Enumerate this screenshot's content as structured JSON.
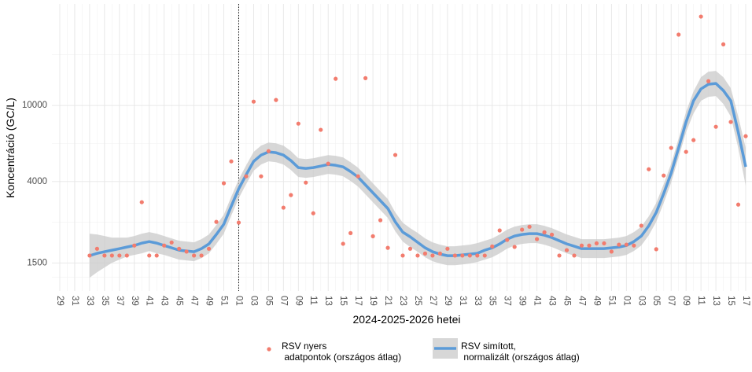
{
  "chart_data": {
    "type": "line",
    "x_label": "2024-2025-2026 hetei",
    "y_label": "Koncentráció (GC/L)",
    "log_y": true,
    "ylim": [
      1070,
      34000
    ],
    "yticks": [
      1500,
      4000,
      10000
    ],
    "grid": true,
    "vline_index": 24,
    "legend": "bottom",
    "categories": [
      "29",
      null,
      "31",
      null,
      "33",
      null,
      "35",
      null,
      "37",
      null,
      "39",
      null,
      "41",
      null,
      "43",
      null,
      "45",
      null,
      "47",
      null,
      "49",
      null,
      "51",
      null,
      "01",
      null,
      "03",
      null,
      "05",
      null,
      "07",
      null,
      "09",
      null,
      "11",
      null,
      "13",
      null,
      "15",
      null,
      "17",
      null,
      "19",
      null,
      "21",
      null,
      "23",
      null,
      "25",
      null,
      "27",
      null,
      "29",
      null,
      "31",
      null,
      "33",
      null,
      "35",
      null,
      "37",
      null,
      "39",
      null,
      "41",
      null,
      "43",
      null,
      "45",
      null,
      "47",
      null,
      "49",
      null,
      "51",
      null,
      "01",
      null,
      "03",
      null,
      "05",
      null,
      "07",
      null,
      "09",
      null,
      "11",
      null,
      "13",
      null,
      "15",
      null,
      "17"
    ],
    "series": [
      {
        "name": "RSV nyers\n adatpontok (országos átlag)",
        "type": "scatter",
        "color": "#f27c6e",
        "values": [
          null,
          null,
          null,
          null,
          1640,
          1780,
          1640,
          1640,
          1640,
          1640,
          1850,
          3120,
          1640,
          1640,
          1850,
          1920,
          1780,
          1720,
          1640,
          1640,
          1780,
          2460,
          3920,
          5100,
          2440,
          4260,
          10480,
          4260,
          5770,
          10690,
          2920,
          3400,
          8040,
          3950,
          2730,
          7460,
          4960,
          13800,
          1890,
          2150,
          4260,
          13900,
          2070,
          2510,
          1800,
          5510,
          1640,
          1780,
          1640,
          1680,
          1640,
          1680,
          1780,
          1640,
          1640,
          1640,
          1640,
          1640,
          1830,
          2220,
          1980,
          1820,
          2240,
          2320,
          2000,
          2170,
          2110,
          1640,
          1750,
          1640,
          1850,
          1850,
          1900,
          1900,
          1720,
          1870,
          1870,
          1850,
          2350,
          4640,
          1770,
          4300,
          6000,
          23500,
          5720,
          6590,
          29200,
          13400,
          7740,
          20900,
          8200,
          3030,
          6910
        ]
      },
      {
        "name": "RSV simított,\n normalizált (országos átlag)",
        "type": "line",
        "color": "#5b9bd8",
        "band_color": "#c9c9c9",
        "values": [
          null,
          null,
          null,
          null,
          1637,
          1684,
          1717,
          1749,
          1782,
          1817,
          1851,
          1905,
          1941,
          1905,
          1851,
          1800,
          1749,
          1733,
          1717,
          1782,
          1887,
          2114,
          2392,
          2973,
          3664,
          4343,
          5101,
          5502,
          5716,
          5662,
          5502,
          5150,
          4731,
          4686,
          4731,
          4820,
          4913,
          4866,
          4774,
          4512,
          4223,
          3841,
          3494,
          3178,
          2891,
          2460,
          2175,
          2055,
          1923,
          1800,
          1717,
          1668,
          1637,
          1637,
          1653,
          1668,
          1684,
          1749,
          1800,
          1887,
          1998,
          2075,
          2114,
          2134,
          2134,
          2095,
          2036,
          1960,
          1887,
          1835,
          1782,
          1782,
          1782,
          1782,
          1800,
          1817,
          1851,
          1941,
          2075,
          2347,
          2758,
          3461,
          4427,
          5994,
          8195,
          10590,
          12210,
          12920,
          13040,
          11980,
          10590,
          7246,
          4774
        ],
        "lower": [
          null,
          null,
          null,
          null,
          1256,
          1342,
          1420,
          1503,
          1562,
          1622,
          1653,
          1684,
          1733,
          1684,
          1653,
          1606,
          1562,
          1547,
          1532,
          1591,
          1684,
          1887,
          2134,
          2655,
          3269,
          3878,
          4553,
          4913,
          5101,
          5052,
          4913,
          4597,
          4223,
          4182,
          4223,
          4304,
          4384,
          4343,
          4263,
          4027,
          3768,
          3428,
          3118,
          2836,
          2580,
          2196,
          1941,
          1817,
          1717,
          1606,
          1532,
          1489,
          1460,
          1460,
          1474,
          1489,
          1517,
          1562,
          1606,
          1684,
          1782,
          1851,
          1887,
          1905,
          1905,
          1869,
          1817,
          1749,
          1684,
          1637,
          1591,
          1591,
          1591,
          1591,
          1606,
          1622,
          1653,
          1733,
          1851,
          2095,
          2460,
          3089,
          3953,
          5349,
          7246,
          9096,
          10590,
          11100,
          11210,
          10190,
          8758,
          5994,
          3804
        ],
        "upper": [
          null,
          null,
          null,
          null,
          2134,
          2114,
          2075,
          2036,
          2036,
          2036,
          2075,
          2134,
          2175,
          2134,
          2075,
          2016,
          1960,
          1941,
          1923,
          1998,
          2114,
          2369,
          2680,
          3332,
          4103,
          4866,
          5716,
          6167,
          6403,
          6342,
          6167,
          5772,
          5297,
          5247,
          5297,
          5400,
          5502,
          5452,
          5349,
          5052,
          4731,
          4304,
          3915,
          3562,
          3240,
          2758,
          2438,
          2281,
          2154,
          2016,
          1923,
          1869,
          1835,
          1835,
          1851,
          1869,
          1905,
          1960,
          2016,
          2114,
          2240,
          2325,
          2369,
          2392,
          2392,
          2347,
          2281,
          2196,
          2114,
          2055,
          1998,
          1998,
          1998,
          1998,
          2016,
          2036,
          2075,
          2175,
          2325,
          2630,
          3089,
          3878,
          4960,
          6715,
          9272,
          11860,
          14060,
          15040,
          15180,
          14060,
          12320,
          8758,
          5994
        ]
      }
    ]
  }
}
